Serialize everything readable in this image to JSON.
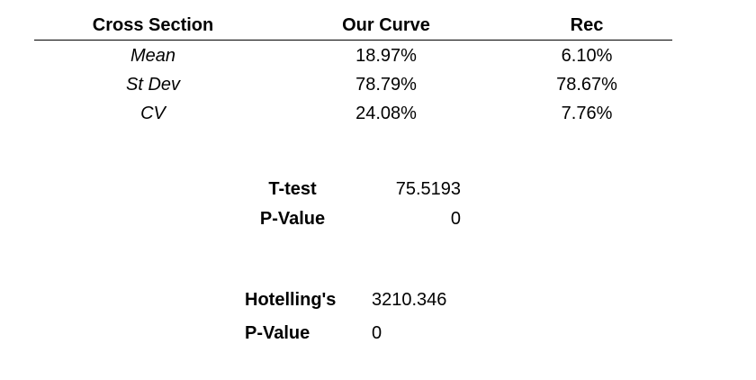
{
  "table": {
    "header": [
      "Cross Section",
      "Our Curve",
      "Rec"
    ],
    "rows": [
      [
        "Mean",
        "18.97%",
        "6.10%"
      ],
      [
        "St Dev",
        "78.79%",
        "78.67%"
      ],
      [
        "CV",
        "24.08%",
        "7.76%"
      ]
    ]
  },
  "t_test": {
    "label": "T-test",
    "value": "75.5193",
    "p_label": "P-Value",
    "p_value": "0"
  },
  "hotelling": {
    "label": "Hotelling's",
    "value": "3210.346",
    "p_label": "P-Value",
    "p_value": "0"
  }
}
